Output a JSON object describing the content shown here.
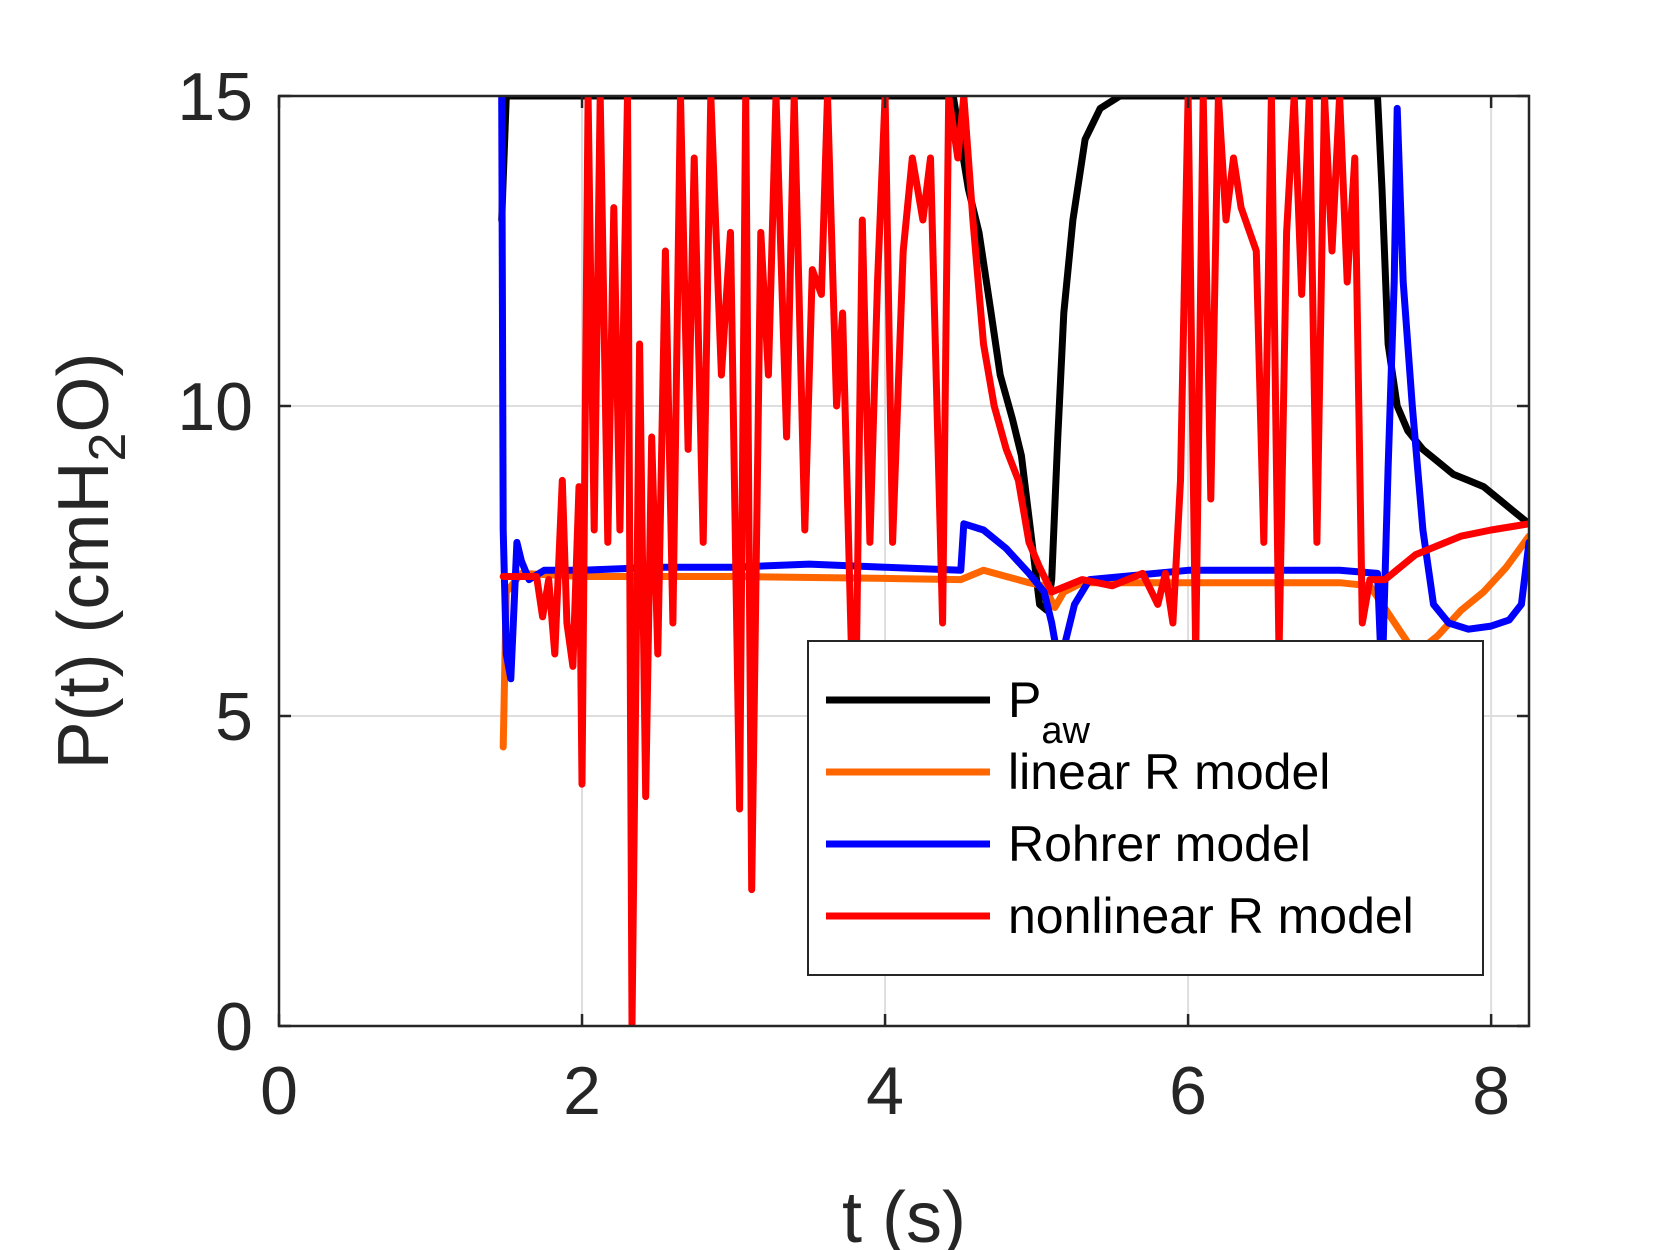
{
  "chart_data": {
    "type": "line",
    "xlabel": "t (s)",
    "ylabel": "P(t) (cmH2O)",
    "ylabel_parts": {
      "main": "P(t) (cmH",
      "sub": "2",
      "tail": "O)"
    },
    "xlim": [
      0,
      8.25
    ],
    "ylim": [
      0,
      15
    ],
    "x_ticks": [
      0,
      2,
      4,
      6,
      8
    ],
    "y_ticks": [
      0,
      5,
      10,
      15
    ],
    "x_tick_labels": [
      "0",
      "2",
      "4",
      "6",
      "8"
    ],
    "y_tick_labels": [
      "0",
      "5",
      "10",
      "15"
    ],
    "grid": true,
    "legend_position": "bottom-right",
    "series": [
      {
        "name": "Paw",
        "legend_main": "P",
        "legend_sub": "aw",
        "color": "#000000",
        "points": [
          [
            1.47,
            13.0
          ],
          [
            1.5,
            15.0
          ],
          [
            1.55,
            15.0
          ],
          [
            4.45,
            15.0
          ],
          [
            4.55,
            13.5
          ],
          [
            4.62,
            12.8
          ],
          [
            4.7,
            11.5
          ],
          [
            4.76,
            10.5
          ],
          [
            4.84,
            9.8
          ],
          [
            4.9,
            9.2
          ],
          [
            4.97,
            7.8
          ],
          [
            5.02,
            6.8
          ],
          [
            5.07,
            6.7
          ],
          [
            5.1,
            7.2
          ],
          [
            5.14,
            9.5
          ],
          [
            5.18,
            11.5
          ],
          [
            5.24,
            13.0
          ],
          [
            5.32,
            14.3
          ],
          [
            5.42,
            14.8
          ],
          [
            5.55,
            15.0
          ],
          [
            7.25,
            15.0
          ],
          [
            7.28,
            13.5
          ],
          [
            7.32,
            11.0
          ],
          [
            7.38,
            10.0
          ],
          [
            7.45,
            9.6
          ],
          [
            7.55,
            9.3
          ],
          [
            7.65,
            9.1
          ],
          [
            7.75,
            8.9
          ],
          [
            7.85,
            8.8
          ],
          [
            7.95,
            8.7
          ],
          [
            8.05,
            8.5
          ],
          [
            8.15,
            8.3
          ],
          [
            8.25,
            8.1
          ]
        ]
      },
      {
        "name": "linear R model",
        "legend_main": "linear R model",
        "color": "#FF6600",
        "points": [
          [
            1.48,
            4.5
          ],
          [
            1.49,
            5.8
          ],
          [
            1.5,
            7.0
          ],
          [
            1.6,
            7.3
          ],
          [
            2.0,
            7.25
          ],
          [
            3.0,
            7.25
          ],
          [
            4.0,
            7.22
          ],
          [
            4.5,
            7.2
          ],
          [
            4.65,
            7.35
          ],
          [
            4.8,
            7.25
          ],
          [
            4.95,
            7.15
          ],
          [
            5.05,
            7.1
          ],
          [
            5.12,
            6.75
          ],
          [
            5.18,
            7.0
          ],
          [
            5.3,
            7.15
          ],
          [
            6.0,
            7.15
          ],
          [
            7.0,
            7.15
          ],
          [
            7.2,
            7.1
          ],
          [
            7.5,
            6.0
          ],
          [
            7.65,
            6.3
          ],
          [
            7.8,
            6.7
          ],
          [
            7.95,
            7.0
          ],
          [
            8.1,
            7.4
          ],
          [
            8.25,
            7.9
          ]
        ]
      },
      {
        "name": "Rohrer model",
        "legend_main": "Rohrer model",
        "color": "#0000FF",
        "points": [
          [
            1.47,
            15.0
          ],
          [
            1.48,
            8.0
          ],
          [
            1.5,
            6.0
          ],
          [
            1.53,
            5.6
          ],
          [
            1.57,
            7.8
          ],
          [
            1.6,
            7.5
          ],
          [
            1.65,
            7.2
          ],
          [
            1.75,
            7.35
          ],
          [
            2.0,
            7.35
          ],
          [
            2.5,
            7.4
          ],
          [
            3.0,
            7.4
          ],
          [
            3.5,
            7.45
          ],
          [
            4.0,
            7.4
          ],
          [
            4.5,
            7.35
          ],
          [
            4.52,
            8.1
          ],
          [
            4.65,
            8.0
          ],
          [
            4.8,
            7.7
          ],
          [
            4.95,
            7.3
          ],
          [
            5.05,
            7.0
          ],
          [
            5.1,
            6.5
          ],
          [
            5.15,
            5.8
          ],
          [
            5.25,
            6.8
          ],
          [
            5.35,
            7.2
          ],
          [
            6.0,
            7.35
          ],
          [
            7.0,
            7.35
          ],
          [
            7.25,
            7.3
          ],
          [
            7.28,
            5.5
          ],
          [
            7.32,
            9.0
          ],
          [
            7.36,
            12.0
          ],
          [
            7.38,
            14.8
          ],
          [
            7.42,
            12.0
          ],
          [
            7.48,
            10.0
          ],
          [
            7.55,
            8.0
          ],
          [
            7.62,
            6.8
          ],
          [
            7.72,
            6.5
          ],
          [
            7.85,
            6.4
          ],
          [
            8.0,
            6.45
          ],
          [
            8.12,
            6.55
          ],
          [
            8.2,
            6.8
          ],
          [
            8.25,
            7.8
          ]
        ]
      },
      {
        "name": "nonlinear R model",
        "legend_main": "nonlinear R model",
        "color": "#FF0000",
        "points": [
          [
            1.48,
            7.25
          ],
          [
            1.7,
            7.25
          ],
          [
            1.74,
            6.6
          ],
          [
            1.78,
            7.2
          ],
          [
            1.82,
            6.0
          ],
          [
            1.87,
            8.8
          ],
          [
            1.9,
            6.5
          ],
          [
            1.94,
            5.8
          ],
          [
            1.98,
            8.7
          ],
          [
            2.0,
            3.9
          ],
          [
            2.04,
            15.0
          ],
          [
            2.08,
            8.0
          ],
          [
            2.12,
            15.0
          ],
          [
            2.17,
            7.8
          ],
          [
            2.21,
            13.2
          ],
          [
            2.25,
            8.0
          ],
          [
            2.3,
            15.0
          ],
          [
            2.33,
            0.0
          ],
          [
            2.38,
            11.0
          ],
          [
            2.42,
            3.7
          ],
          [
            2.46,
            9.5
          ],
          [
            2.5,
            6.0
          ],
          [
            2.55,
            12.5
          ],
          [
            2.6,
            6.5
          ],
          [
            2.65,
            15.0
          ],
          [
            2.7,
            9.3
          ],
          [
            2.74,
            14.0
          ],
          [
            2.8,
            7.8
          ],
          [
            2.85,
            15.0
          ],
          [
            2.92,
            10.5
          ],
          [
            2.98,
            12.8
          ],
          [
            3.04,
            3.5
          ],
          [
            3.08,
            15.0
          ],
          [
            3.12,
            2.2
          ],
          [
            3.18,
            12.8
          ],
          [
            3.23,
            10.5
          ],
          [
            3.28,
            15.0
          ],
          [
            3.35,
            9.5
          ],
          [
            3.4,
            15.0
          ],
          [
            3.47,
            8.0
          ],
          [
            3.52,
            12.2
          ],
          [
            3.58,
            11.8
          ],
          [
            3.62,
            15.0
          ],
          [
            3.68,
            10.0
          ],
          [
            3.72,
            11.5
          ],
          [
            3.8,
            4.0
          ],
          [
            3.85,
            13.0
          ],
          [
            3.9,
            7.8
          ],
          [
            3.95,
            12.0
          ],
          [
            4.0,
            15.0
          ],
          [
            4.05,
            7.8
          ],
          [
            4.12,
            12.5
          ],
          [
            4.18,
            14.0
          ],
          [
            4.25,
            13.0
          ],
          [
            4.3,
            14.0
          ],
          [
            4.38,
            6.5
          ],
          [
            4.42,
            15.0
          ],
          [
            4.48,
            14.0
          ],
          [
            4.52,
            15.0
          ],
          [
            4.58,
            13.0
          ],
          [
            4.65,
            11.0
          ],
          [
            4.72,
            10.0
          ],
          [
            4.8,
            9.3
          ],
          [
            4.88,
            8.8
          ],
          [
            4.95,
            7.8
          ],
          [
            5.02,
            7.4
          ],
          [
            5.1,
            7.0
          ],
          [
            5.3,
            7.2
          ],
          [
            5.5,
            7.1
          ],
          [
            5.7,
            7.3
          ],
          [
            5.8,
            6.8
          ],
          [
            5.85,
            7.3
          ],
          [
            5.9,
            6.5
          ],
          [
            5.95,
            8.8
          ],
          [
            6.0,
            15.0
          ],
          [
            6.05,
            6.0
          ],
          [
            6.1,
            15.0
          ],
          [
            6.15,
            8.5
          ],
          [
            6.2,
            15.0
          ],
          [
            6.25,
            13.0
          ],
          [
            6.3,
            14.0
          ],
          [
            6.35,
            13.2
          ],
          [
            6.45,
            12.5
          ],
          [
            6.5,
            7.8
          ],
          [
            6.55,
            15.0
          ],
          [
            6.6,
            6.0
          ],
          [
            6.65,
            12.8
          ],
          [
            6.7,
            15.0
          ],
          [
            6.75,
            11.8
          ],
          [
            6.8,
            15.0
          ],
          [
            6.85,
            7.8
          ],
          [
            6.9,
            15.0
          ],
          [
            6.95,
            12.5
          ],
          [
            7.0,
            15.0
          ],
          [
            7.05,
            12.0
          ],
          [
            7.1,
            14.0
          ],
          [
            7.15,
            6.5
          ],
          [
            7.2,
            7.2
          ],
          [
            7.3,
            7.2
          ],
          [
            7.5,
            7.6
          ],
          [
            7.8,
            7.9
          ],
          [
            8.0,
            8.0
          ],
          [
            8.25,
            8.1
          ]
        ]
      }
    ]
  }
}
